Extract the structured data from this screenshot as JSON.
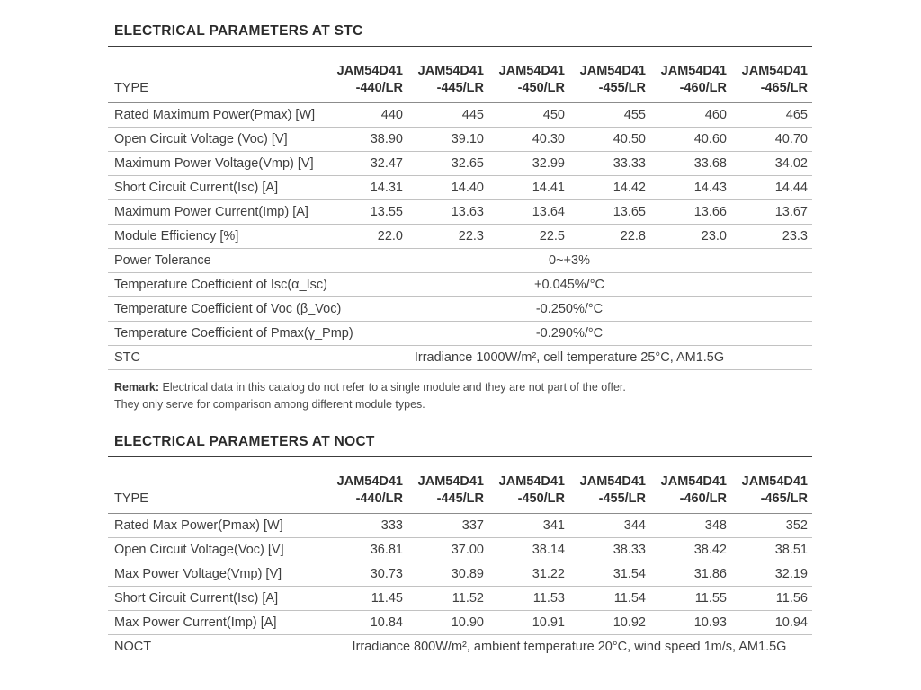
{
  "colors": {
    "background": "#ffffff",
    "title_text": "#2b2b2b",
    "body_text": "#3f3f3f",
    "title_rule": "#3c3c3c",
    "header_rule": "#8c8c8c",
    "row_rule": "#c2c2c2"
  },
  "stc": {
    "title": "ELECTRICAL PARAMETERS AT STC",
    "type_label": "TYPE",
    "columns": [
      {
        "model": "JAM54D41",
        "variant": "-440/LR"
      },
      {
        "model": "JAM54D41",
        "variant": "-445/LR"
      },
      {
        "model": "JAM54D41",
        "variant": "-450/LR"
      },
      {
        "model": "JAM54D41",
        "variant": "-455/LR"
      },
      {
        "model": "JAM54D41",
        "variant": "-460/LR"
      },
      {
        "model": "JAM54D41",
        "variant": "-465/LR"
      }
    ],
    "rows": [
      {
        "label": "Rated Maximum Power(Pmax) [W]",
        "values": [
          "440",
          "445",
          "450",
          "455",
          "460",
          "465"
        ]
      },
      {
        "label": "Open Circuit Voltage (Voc) [V]",
        "values": [
          "38.90",
          "39.10",
          "40.30",
          "40.50",
          "40.60",
          "40.70"
        ]
      },
      {
        "label": "Maximum Power Voltage(Vmp) [V]",
        "values": [
          "32.47",
          "32.65",
          "32.99",
          "33.33",
          "33.68",
          "34.02"
        ]
      },
      {
        "label": "Short Circuit Current(Isc) [A]",
        "values": [
          "14.31",
          "14.40",
          "14.41",
          "14.42",
          "14.43",
          "14.44"
        ]
      },
      {
        "label": "Maximum Power Current(Imp) [A]",
        "values": [
          "13.55",
          "13.63",
          "13.64",
          "13.65",
          "13.66",
          "13.67"
        ]
      },
      {
        "label": "Module Efficiency [%]",
        "values": [
          "22.0",
          "22.3",
          "22.5",
          "22.8",
          "23.0",
          "23.3"
        ]
      }
    ],
    "span_rows": [
      {
        "label": "Power Tolerance",
        "value": "0~+3%"
      },
      {
        "label": "Temperature Coefficient of Isc(α_Isc)",
        "value": "+0.045%/°C"
      },
      {
        "label": "Temperature Coefficient of Voc (β_Voc)",
        "value": "-0.250%/°C"
      },
      {
        "label": "Temperature Coefficient of Pmax(γ_Pmp)",
        "value": "-0.290%/°C"
      },
      {
        "label": "STC",
        "value": "Irradiance 1000W/m², cell temperature 25°C, AM1.5G"
      }
    ],
    "remark_label": "Remark:",
    "remark_text": " Electrical data in this catalog do not refer to a single module and they are not part of the offer.",
    "remark_text2": "They only serve for comparison among different module types."
  },
  "noct": {
    "title": "ELECTRICAL PARAMETERS AT NOCT",
    "type_label": "TYPE",
    "columns": [
      {
        "model": "JAM54D41",
        "variant": "-440/LR"
      },
      {
        "model": "JAM54D41",
        "variant": "-445/LR"
      },
      {
        "model": "JAM54D41",
        "variant": "-450/LR"
      },
      {
        "model": "JAM54D41",
        "variant": "-455/LR"
      },
      {
        "model": "JAM54D41",
        "variant": "-460/LR"
      },
      {
        "model": "JAM54D41",
        "variant": "-465/LR"
      }
    ],
    "rows": [
      {
        "label": "Rated Max Power(Pmax) [W]",
        "values": [
          "333",
          "337",
          "341",
          "344",
          "348",
          "352"
        ]
      },
      {
        "label": "Open Circuit Voltage(Voc) [V]",
        "values": [
          "36.81",
          "37.00",
          "38.14",
          "38.33",
          "38.42",
          "38.51"
        ]
      },
      {
        "label": "Max Power Voltage(Vmp) [V]",
        "values": [
          "30.73",
          "30.89",
          "31.22",
          "31.54",
          "31.86",
          "32.19"
        ]
      },
      {
        "label": "Short Circuit Current(Isc) [A]",
        "values": [
          "11.45",
          "11.52",
          "11.53",
          "11.54",
          "11.55",
          "11.56"
        ]
      },
      {
        "label": "Max Power Current(Imp) [A]",
        "values": [
          "10.84",
          "10.90",
          "10.91",
          "10.92",
          "10.93",
          "10.94"
        ]
      }
    ],
    "span_rows": [
      {
        "label": "NOCT",
        "value": "Irradiance 800W/m², ambient temperature 20°C, wind speed 1m/s, AM1.5G"
      }
    ]
  }
}
